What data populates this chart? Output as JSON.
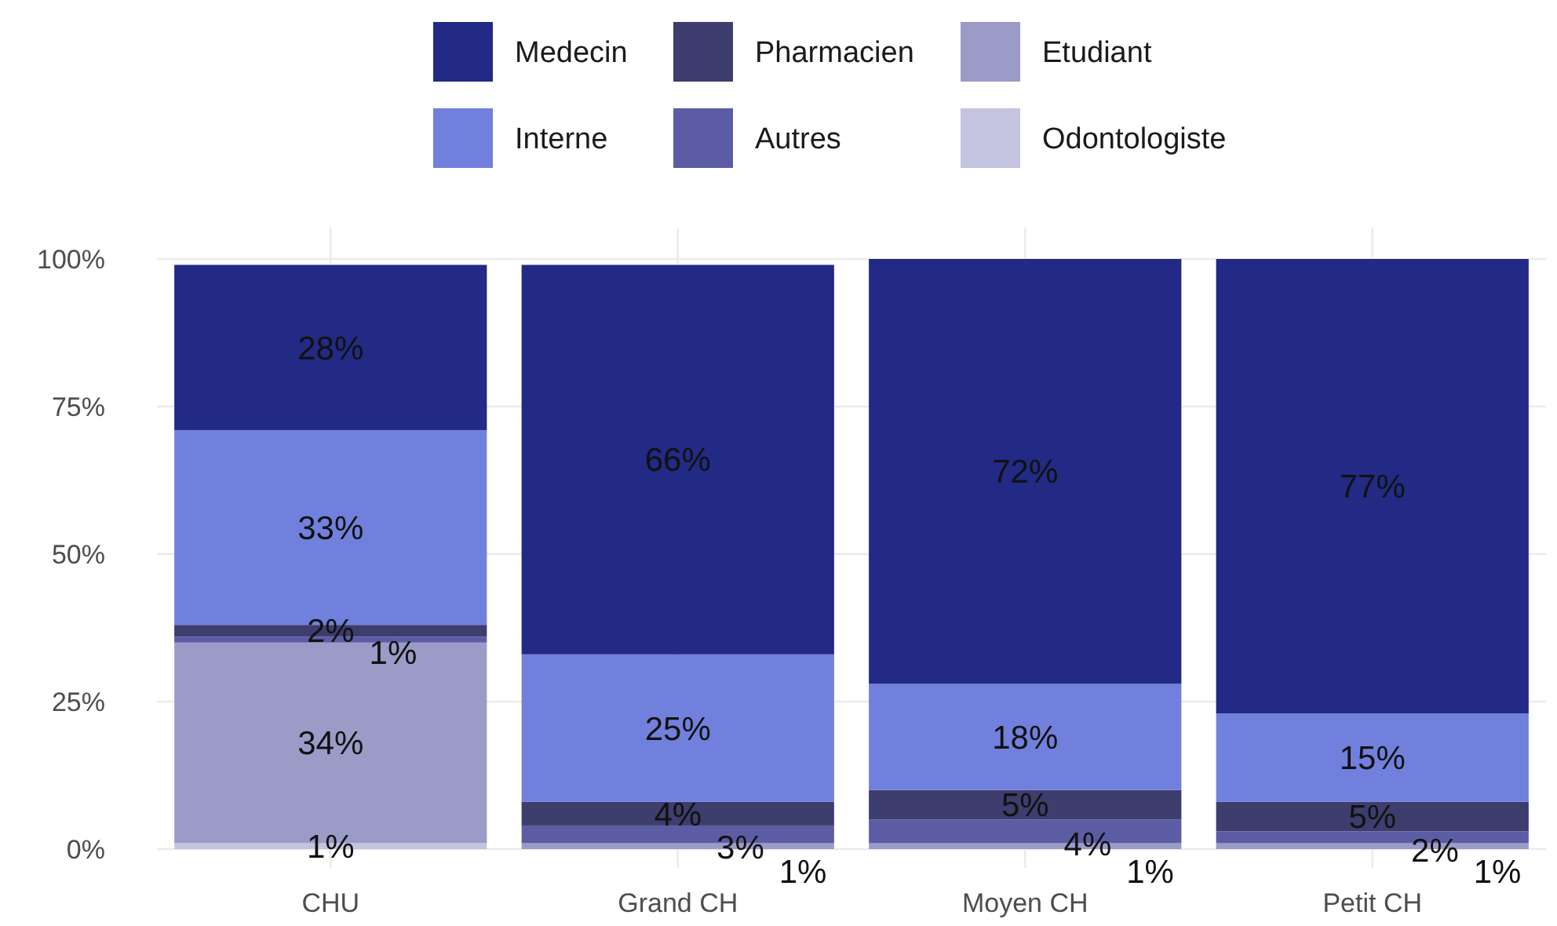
{
  "chart_data": {
    "type": "bar",
    "stacked": true,
    "categories": [
      "CHU",
      "Grand CH",
      "Moyen CH",
      "Petit CH"
    ],
    "series": [
      {
        "name": "Odontologiste",
        "color": "#c4c4e0",
        "values": [
          1,
          null,
          null,
          null
        ],
        "value_labels": [
          "1%",
          null,
          null,
          null
        ]
      },
      {
        "name": "Etudiant",
        "color": "#9b9bc8",
        "values": [
          34,
          1,
          1,
          1
        ],
        "value_labels": [
          "34%",
          "1%",
          "1%",
          "1%"
        ]
      },
      {
        "name": "Autres",
        "color": "#5c5ca5",
        "values": [
          1,
          3,
          4,
          2
        ],
        "value_labels": [
          "1%",
          "3%",
          "4%",
          "2%"
        ]
      },
      {
        "name": "Pharmacien",
        "color": "#3d3d6e",
        "values": [
          2,
          4,
          5,
          5
        ],
        "value_labels": [
          "2%",
          "4%",
          "5%",
          "5%"
        ]
      },
      {
        "name": "Interne",
        "color": "#7180dc",
        "values": [
          33,
          25,
          18,
          15
        ],
        "value_labels": [
          "33%",
          "25%",
          "18%",
          "15%"
        ]
      },
      {
        "name": "Medecin",
        "color": "#222a85",
        "values": [
          28,
          66,
          72,
          77
        ],
        "value_labels": [
          "28%",
          "66%",
          "72%",
          "77%"
        ]
      }
    ],
    "ylim": [
      0,
      100
    ],
    "yticks": [
      {
        "value": 0,
        "label": "0%"
      },
      {
        "value": 25,
        "label": "25%"
      },
      {
        "value": 50,
        "label": "50%"
      },
      {
        "value": 75,
        "label": "75%"
      },
      {
        "value": 100,
        "label": "100%"
      }
    ],
    "grid": true,
    "legend": "top"
  }
}
